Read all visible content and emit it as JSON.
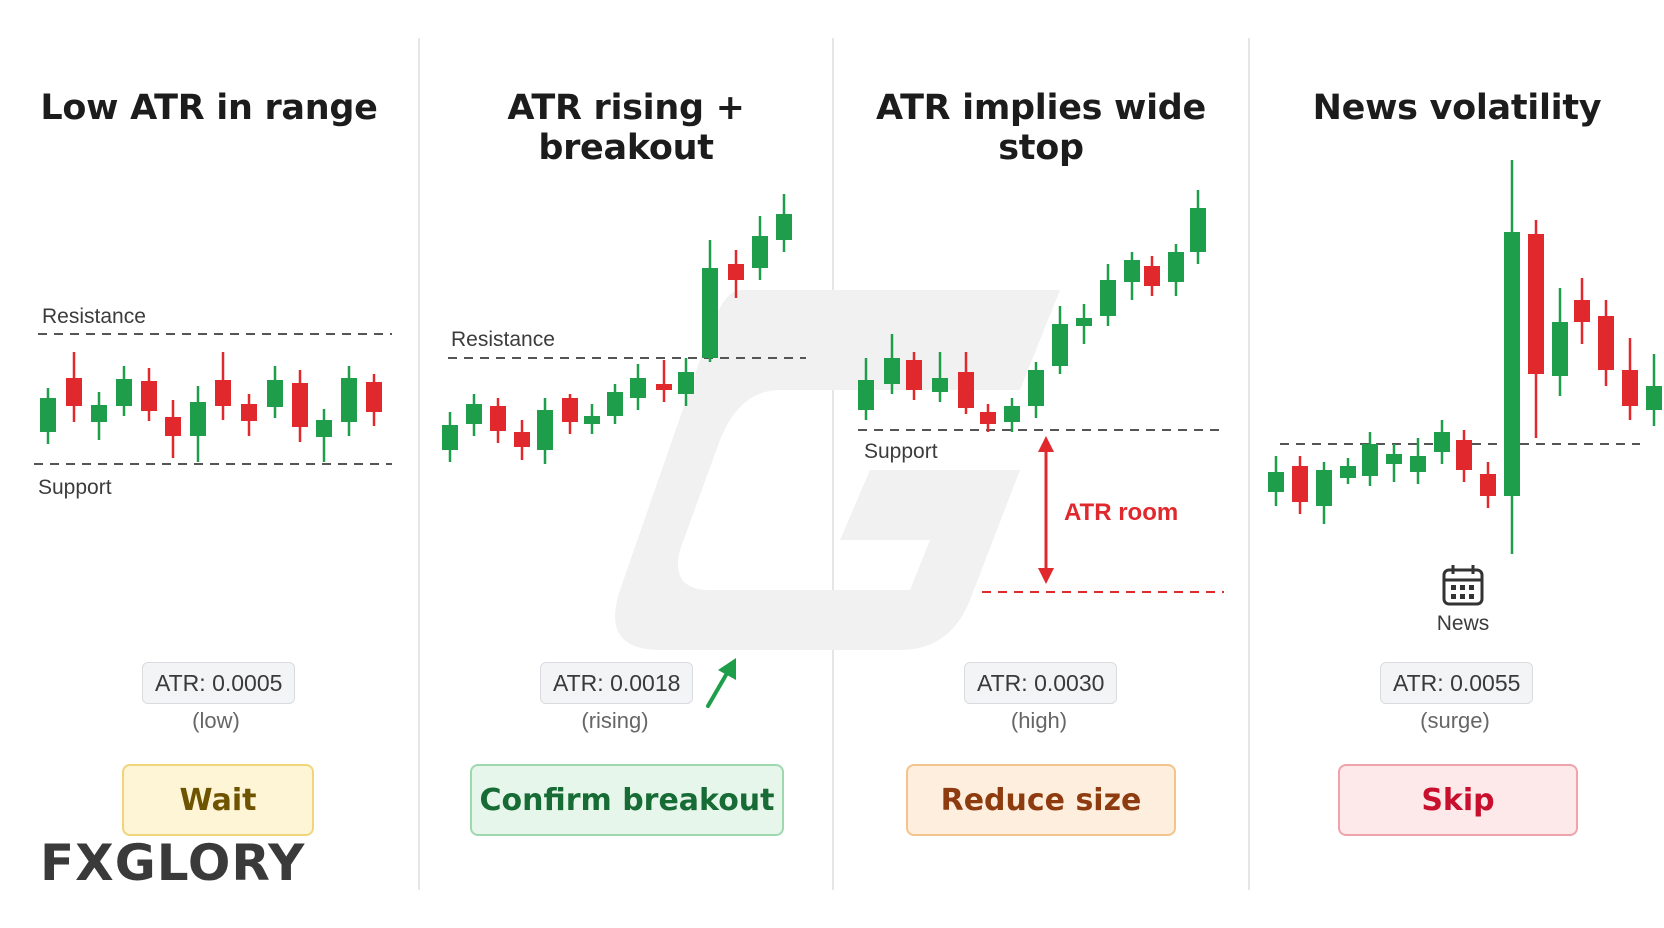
{
  "colors": {
    "bull": "#1e9e4a",
    "bear": "#e0282d",
    "line": "#555555",
    "red_line": "#e0282d"
  },
  "panels": [
    {
      "title": "Low ATR in range",
      "resistance_label": "Resistance",
      "support_label": "Support",
      "atr_label": "ATR: 0.0005",
      "atr_note": "(low)",
      "action": "Wait",
      "action_colors": {
        "bg": "#fdf5d6",
        "border": "#f1d57a",
        "text": "#6e5300"
      }
    },
    {
      "title": "ATR rising + breakout",
      "resistance_label": "Resistance",
      "atr_label": "ATR: 0.0018",
      "atr_note": "(rising)",
      "action": "Confirm breakout",
      "action_colors": {
        "bg": "#e6f6ea",
        "border": "#9fd8ae",
        "text": "#176b35"
      }
    },
    {
      "title": "ATR implies wide stop",
      "support_label": "Support",
      "atr_room_label": "ATR room",
      "atr_label": "ATR: 0.0030",
      "atr_note": "(high)",
      "action": "Reduce size",
      "action_colors": {
        "bg": "#fdeedd",
        "border": "#f3c48b",
        "text": "#8f3b10"
      }
    },
    {
      "title": "News volatility",
      "news_label": "News",
      "news_icon": "calendar-icon",
      "atr_label": "ATR: 0.0055",
      "atr_note": "(surge)",
      "action": "Skip",
      "action_colors": {
        "bg": "#fde8ea",
        "border": "#f0a3ab",
        "text": "#c8102e"
      }
    }
  ],
  "logo": {
    "text_before": "FX",
    "text_after": "GLORY"
  }
}
